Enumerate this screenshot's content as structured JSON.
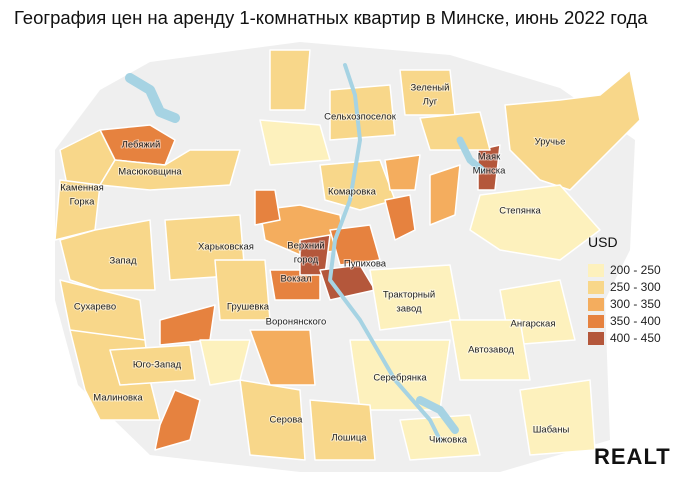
{
  "title": "География цен на аренду 1-комнатных квартир в Минске, июнь 2022 года",
  "districts": [
    [
      "Лебяжий"
    ],
    [
      "Масюковщина"
    ],
    [
      "Каменная",
      "Горка"
    ],
    [
      "Зеленый",
      "Луг"
    ],
    [
      "Сельхозпоселок"
    ],
    [
      "Маяк",
      "Минска"
    ],
    [
      "Уручье"
    ],
    [
      "Комаровка"
    ],
    [
      "Степянка"
    ],
    [
      "Харьковская"
    ],
    [
      "Верхний",
      "город"
    ],
    [
      "Пупихова"
    ],
    [
      "Запад"
    ],
    [
      "Вокзал"
    ],
    [
      "Тракторный",
      "завод"
    ],
    [
      "Сухарево"
    ],
    [
      "Грушевка"
    ],
    [
      "Воронянского"
    ],
    [
      "Ангарская"
    ],
    [
      "Автозавод"
    ],
    [
      "Юго-Запад"
    ],
    [
      "Серебрянка"
    ],
    [
      "Малиновка"
    ],
    [
      "Серова"
    ],
    [
      "Шабаны"
    ],
    [
      "Лошица"
    ],
    [
      "Чижовка"
    ]
  ],
  "legend": {
    "title": "USD",
    "items": [
      "200 - 250",
      "250 - 300",
      "300 - 350",
      "350 - 400",
      "400 - 450"
    ],
    "colors": [
      "#fdf1bd",
      "#f8d78a",
      "#f4ad5e",
      "#e6823f",
      "#b4573b"
    ]
  },
  "logo": "REALT"
}
